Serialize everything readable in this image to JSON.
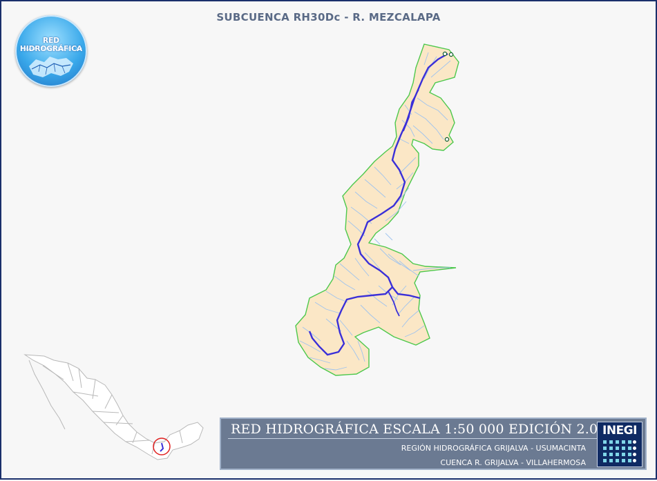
{
  "map": {
    "title": "SUBCUENCA RH30Dc - R. MEZCALAPA",
    "logo": {
      "title": "RED HIDROGRÁFICA",
      "subtitle": "ESCALA 1:50 000  Edición: 2.0"
    },
    "banner": {
      "title": "RED HIDROGRÁFICA ESCALA 1:50 000 EDICIÓN 2.0",
      "region": "REGIÓN HIDROGRÁFICA GRIJALVA - USUMACINTA",
      "cuenca": "CUENCA R. GRIJALVA - VILLAHERMOSA",
      "agency": "INEGI"
    },
    "colors": {
      "frame": "#1a2f6b",
      "basin_fill": "#fbe7c6",
      "basin_outline": "#4cc84c",
      "streams": "#9ec3ef",
      "main_river": "#3a2fd8",
      "banner": "#6b7a92",
      "locator_highlight": "#e02020"
    }
  }
}
